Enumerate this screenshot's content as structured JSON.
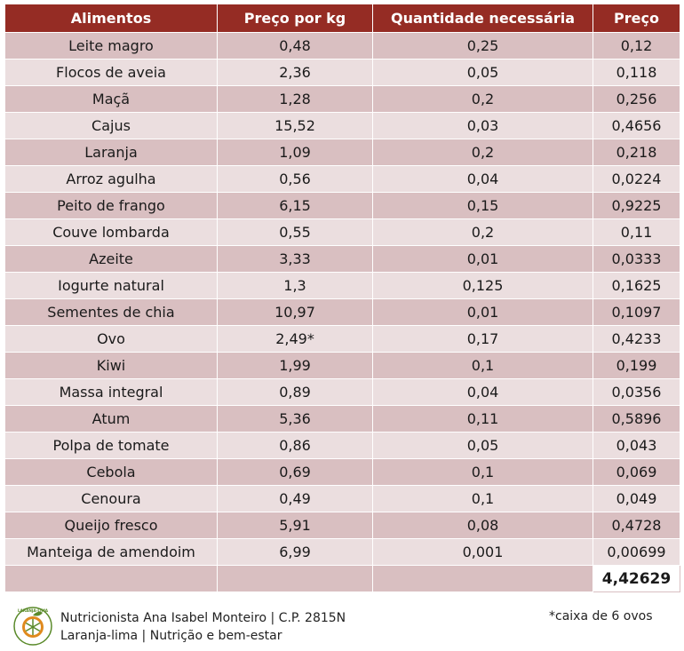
{
  "table": {
    "headers": [
      "Alimentos",
      "Preço por kg",
      "Quantidade necessária",
      "Preço"
    ],
    "rows": [
      [
        "Leite magro",
        "0,48",
        "0,25",
        "0,12"
      ],
      [
        "Flocos de aveia",
        "2,36",
        "0,05",
        "0,118"
      ],
      [
        "Maçã",
        "1,28",
        "0,2",
        "0,256"
      ],
      [
        "Cajus",
        "15,52",
        "0,03",
        "0,4656"
      ],
      [
        "Laranja",
        "1,09",
        "0,2",
        "0,218"
      ],
      [
        "Arroz agulha",
        "0,56",
        "0,04",
        "0,0224"
      ],
      [
        "Peito de frango",
        "6,15",
        "0,15",
        "0,9225"
      ],
      [
        "Couve lombarda",
        "0,55",
        "0,2",
        "0,11"
      ],
      [
        "Azeite",
        "3,33",
        "0,01",
        "0,0333"
      ],
      [
        "Iogurte natural",
        "1,3",
        "0,125",
        "0,1625"
      ],
      [
        "Sementes de chia",
        "10,97",
        "0,01",
        "0,1097"
      ],
      [
        "Ovo",
        "2,49*",
        "0,17",
        "0,4233"
      ],
      [
        "Kiwi",
        "1,99",
        "0,1",
        "0,199"
      ],
      [
        "Massa integral",
        "0,89",
        "0,04",
        "0,0356"
      ],
      [
        "Atum",
        "5,36",
        "0,11",
        "0,5896"
      ],
      [
        "Polpa de tomate",
        "0,86",
        "0,05",
        "0,043"
      ],
      [
        "Cebola",
        "0,69",
        "0,1",
        "0,069"
      ],
      [
        "Cenoura",
        "0,49",
        "0,1",
        "0,049"
      ],
      [
        "Queijo fresco",
        "5,91",
        "0,08",
        "0,4728"
      ],
      [
        "Manteiga de amendoim",
        "6,99",
        "0,001",
        "0,00699"
      ]
    ],
    "total": "4,42629"
  },
  "footer": {
    "logo_text": "LARANJA-LIMA",
    "line1": "Nutricionista Ana Isabel Monteiro | C.P. 2815N",
    "line2": "Laranja-lima | Nutrição e bem-estar",
    "note": "*caixa de 6 ovos"
  },
  "colors": {
    "header_bg": "#952c24",
    "row_dark": "#d9bfc1",
    "row_light": "#ebdedf",
    "logo_green": "#5a8a2a",
    "logo_orange": "#e08a1e"
  }
}
